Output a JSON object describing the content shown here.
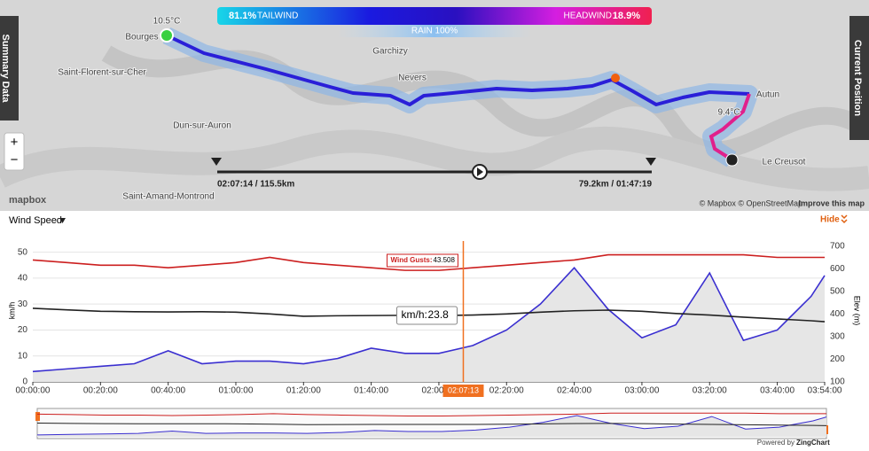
{
  "tabs": {
    "summary": "Summary Data",
    "position": "Current Position"
  },
  "map": {
    "tailwind": "81.1%",
    "tailwind_label": "TAILWIND",
    "headwind_label": "HEADWIND",
    "headwind": "18.9%",
    "rain": "RAIN 100%",
    "cities": [
      "Bourges",
      "Saint-Florent-sur-Cher",
      "Dun-sur-Auron",
      "Saint-Amand-Montrond",
      "Garchizy",
      "Nevers",
      "Autun",
      "Le Creusot"
    ],
    "start_temp": "10.5°C",
    "end_temp": "9.4°C",
    "slider_left": "02:07:14 / 115.5km",
    "slider_right": "79.2km / 01:47:19",
    "zoom_in": "+",
    "zoom_out": "−",
    "logo": "mapbox",
    "attribution": "© Mapbox © OpenStreetMap",
    "improve": "Improve this map"
  },
  "chart_data": {
    "type": "line",
    "selector": "Wind Speed",
    "hide": "Hide",
    "ylabel": "km/h",
    "y2label": "Elev (m)",
    "x": [
      "00:00:00",
      "00:10:00",
      "00:20:00",
      "00:30:00",
      "00:40:00",
      "00:50:00",
      "01:00:00",
      "01:10:00",
      "01:20:00",
      "01:30:00",
      "01:40:00",
      "01:50:00",
      "02:00:00",
      "02:10:00",
      "02:20:00",
      "02:30:00",
      "02:40:00",
      "02:50:00",
      "03:00:00",
      "03:10:00",
      "03:20:00",
      "03:30:00",
      "03:40:00",
      "03:50:00",
      "03:54:00"
    ],
    "xticks": [
      "00:00:00",
      "00:20:00",
      "00:40:00",
      "01:00:00",
      "01:20:00",
      "01:40:00",
      "02:00:00",
      "02:20:00",
      "02:40:00",
      "03:00:00",
      "03:20:00",
      "03:40:00",
      "03:54:00"
    ],
    "ylim": [
      0,
      55
    ],
    "yticks": [
      0,
      10,
      20,
      30,
      40,
      50
    ],
    "y2lim": [
      100,
      730
    ],
    "y2ticks": [
      100,
      200,
      300,
      400,
      500,
      600,
      700
    ],
    "grid": true,
    "series": [
      {
        "color": "#3a2fd0",
        "fill": "#e6e6e6",
        "values": [
          4,
          5,
          6,
          7,
          12,
          7,
          8,
          8,
          7,
          9,
          13,
          11,
          11,
          14,
          20,
          30,
          44,
          28,
          17,
          22,
          42,
          16,
          20,
          33,
          41
        ]
      },
      {
        "color": "#cc1f1f",
        "values": [
          47,
          46,
          45,
          45,
          44,
          45,
          46,
          48,
          46,
          45,
          44,
          43,
          43,
          44,
          45,
          46,
          47,
          49,
          49,
          49,
          49,
          49,
          48,
          48,
          48
        ]
      },
      {
        "color": "#222222",
        "axis": "y2",
        "values": [
          425,
          418,
          412,
          410,
          409,
          410,
          408,
          400,
          390,
          392,
          393,
          394,
          393,
          395,
          400,
          408,
          414,
          417,
          412,
          402,
          395,
          386,
          378,
          370,
          366
        ]
      }
    ],
    "tooltip": {
      "gusts_label": "Wind Gusts:",
      "gusts_value": 43.508,
      "speed_label": "km/h:",
      "speed_value": 23.8,
      "cursor": "02:07:13"
    },
    "powered": "Powered by",
    "brand": "ZingChart"
  }
}
